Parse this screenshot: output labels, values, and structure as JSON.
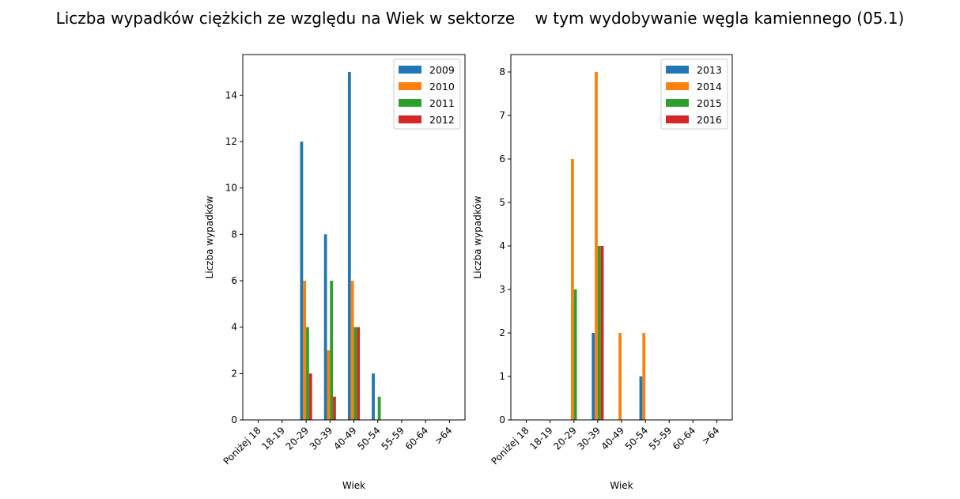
{
  "title": "Liczba wypadków ciężkich ze względu na Wiek w sektorze    w tym wydobywanie węgla kamiennego (05.1)",
  "colors": [
    "#1f77b4",
    "#ff7f0e",
    "#2ca02c",
    "#d62728"
  ],
  "chart_data": [
    {
      "type": "bar",
      "xlabel": "Wiek",
      "ylabel": "Liczba wypadków",
      "categories": [
        "Poniżej 18",
        "18-19",
        "20-29",
        "30-39",
        "40-49",
        "50-54",
        "55-59",
        "60-64",
        ">64"
      ],
      "ylim": [
        0,
        15.75
      ],
      "yticks": [
        0,
        2,
        4,
        6,
        8,
        10,
        12,
        14
      ],
      "legend_position": "top-right",
      "grid": false,
      "series": [
        {
          "name": "2009",
          "values": [
            0,
            0,
            12,
            8,
            15,
            2,
            0,
            0,
            0
          ]
        },
        {
          "name": "2010",
          "values": [
            0,
            0,
            6,
            3,
            6,
            0,
            0,
            0,
            0
          ]
        },
        {
          "name": "2011",
          "values": [
            0,
            0,
            4,
            6,
            4,
            1,
            0,
            0,
            0
          ]
        },
        {
          "name": "2012",
          "values": [
            0,
            0,
            2,
            1,
            4,
            0,
            0,
            0,
            0
          ]
        }
      ]
    },
    {
      "type": "bar",
      "xlabel": "Wiek",
      "ylabel": "Liczba wypadków",
      "categories": [
        "Poniżej 18",
        "18-19",
        "20-29",
        "30-39",
        "40-49",
        "50-54",
        "55-59",
        "60-64",
        ">64"
      ],
      "ylim": [
        0,
        8.4
      ],
      "yticks": [
        0,
        1,
        2,
        3,
        4,
        5,
        6,
        7,
        8
      ],
      "legend_position": "top-right",
      "grid": false,
      "series": [
        {
          "name": "2013",
          "values": [
            0,
            0,
            0,
            2,
            0,
            1,
            0,
            0,
            0
          ]
        },
        {
          "name": "2014",
          "values": [
            0,
            0,
            6,
            8,
            2,
            2,
            0,
            0,
            0
          ]
        },
        {
          "name": "2015",
          "values": [
            0,
            0,
            3,
            4,
            0,
            0,
            0,
            0,
            0
          ]
        },
        {
          "name": "2016",
          "values": [
            0,
            0,
            0,
            4,
            0,
            0,
            0,
            0,
            0
          ]
        }
      ]
    }
  ]
}
